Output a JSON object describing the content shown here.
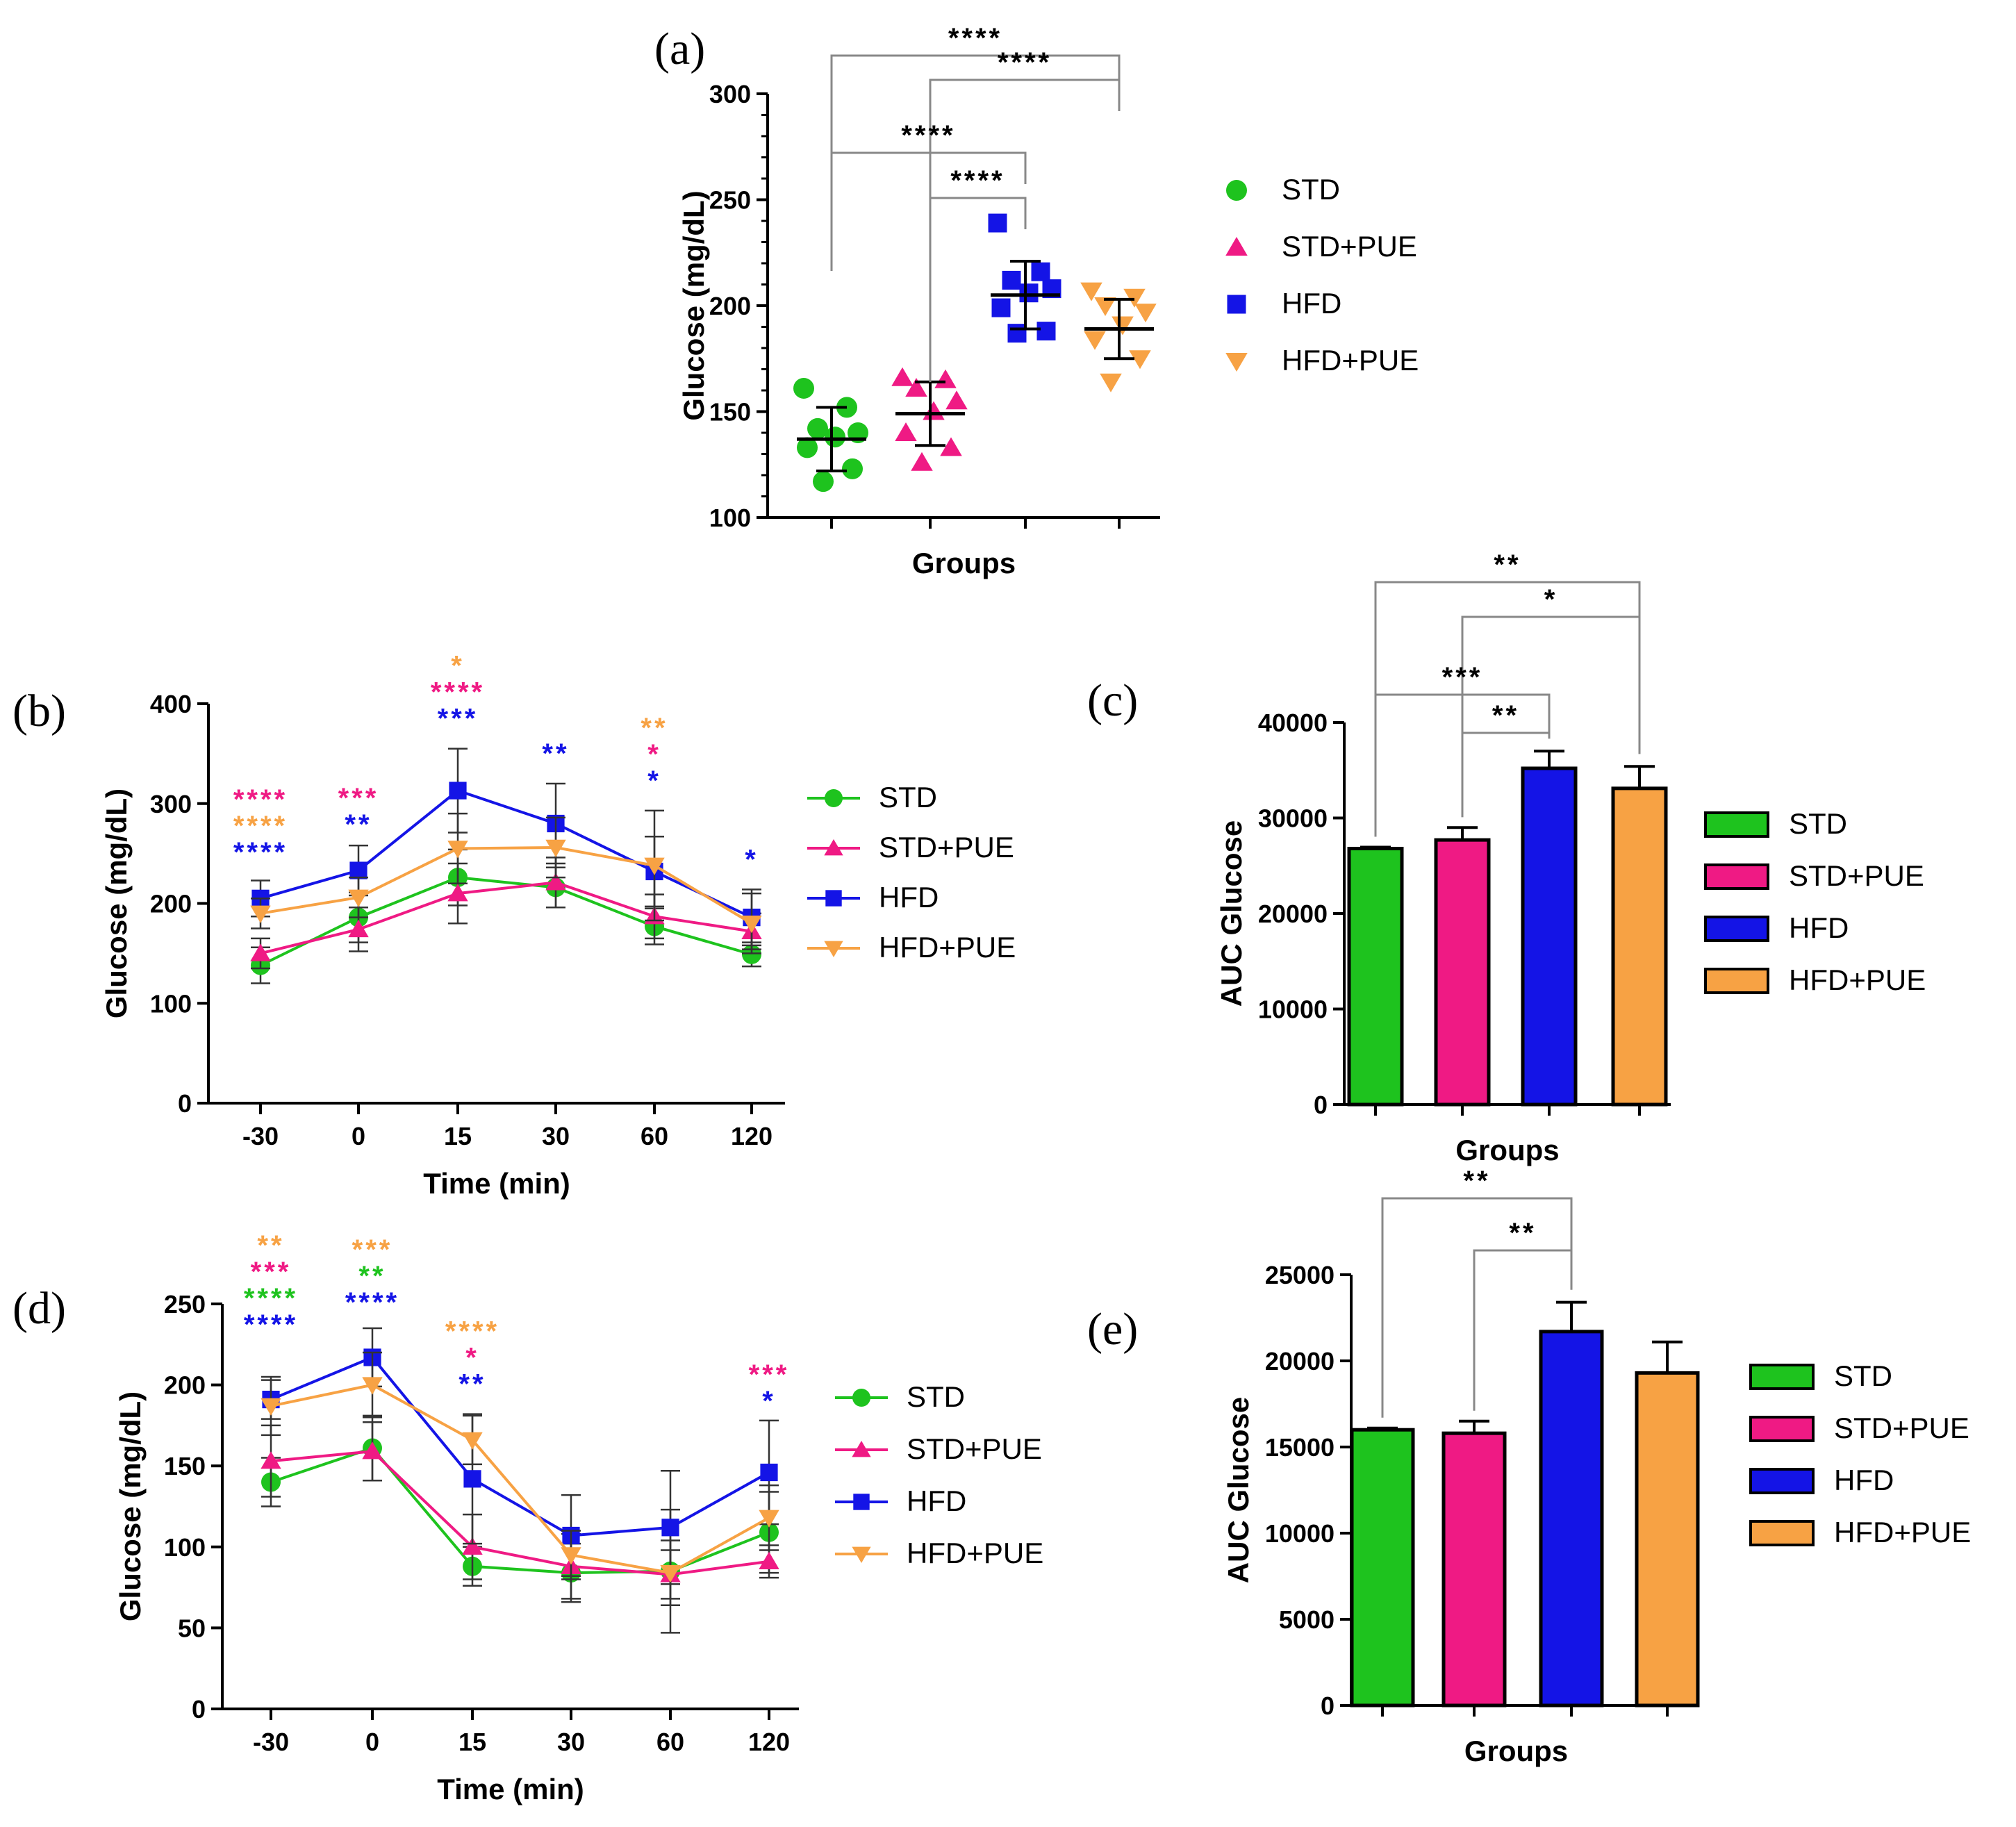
{
  "colors": {
    "STD": "#1ec31e",
    "STD+PUE": "#ef1a84",
    "HFD": "#1414e6",
    "HFD+PUE": "#f7a244"
  },
  "chart_data": [
    {
      "id": "a",
      "panel_label": "(a)",
      "type": "scatter",
      "xlabel": "Groups",
      "ylabel": "Glucose (mg/dL)",
      "ylim": [
        100,
        300
      ],
      "yticks": [
        "100",
        "150",
        "200",
        "250",
        "300"
      ],
      "legend": [
        "STD",
        "STD+PUE",
        "HFD",
        "HFD+PUE"
      ],
      "groups": [
        {
          "name": "STD",
          "values": [
            161,
            152,
            142,
            140,
            138,
            133,
            123,
            117
          ],
          "mean": 137,
          "sd": 15
        },
        {
          "name": "STD+PUE",
          "values": [
            166,
            165,
            161,
            155,
            150,
            140,
            133,
            126
          ],
          "mean": 149,
          "sd": 15
        },
        {
          "name": "HFD",
          "values": [
            239,
            216,
            212,
            208,
            206,
            199,
            188,
            187
          ],
          "mean": 205,
          "sd": 16
        },
        {
          "name": "HFD+PUE",
          "values": [
            207,
            204,
            200,
            197,
            191,
            184,
            175,
            164
          ],
          "mean": 189,
          "sd": 14
        }
      ],
      "significance": [
        {
          "from": 0,
          "to": 3,
          "label": "****"
        },
        {
          "from": 1,
          "to": 3,
          "label": "****"
        },
        {
          "from": 0,
          "to": 2,
          "label": "****"
        },
        {
          "from": 1,
          "to": 2,
          "label": "****"
        }
      ]
    },
    {
      "id": "b",
      "panel_label": "(b)",
      "type": "line",
      "xlabel": "Time (min)",
      "ylabel": "Glucose (mg/dL)",
      "ylim": [
        0,
        400
      ],
      "yticks": [
        "0",
        "100",
        "200",
        "300",
        "400"
      ],
      "x": [
        "-30",
        "0",
        "15",
        "30",
        "60",
        "120"
      ],
      "series": [
        {
          "name": "STD",
          "values": [
            138,
            186,
            226,
            216,
            177,
            149
          ],
          "err": [
            18,
            25,
            28,
            20,
            18,
            12
          ]
        },
        {
          "name": "STD+PUE",
          "values": [
            150,
            174,
            210,
            221,
            187,
            172
          ],
          "err": [
            15,
            22,
            30,
            25,
            22,
            18
          ]
        },
        {
          "name": "HFD",
          "values": [
            205,
            233,
            313,
            280,
            232,
            186
          ],
          "err": [
            18,
            25,
            42,
            40,
            35,
            28
          ]
        },
        {
          "name": "HFD+PUE",
          "values": [
            190,
            206,
            255,
            256,
            238,
            180
          ],
          "err": [
            15,
            20,
            35,
            30,
            55,
            30
          ]
        }
      ],
      "stars": [
        {
          "x": 0,
          "rows": [
            {
              "label": "****",
              "color": "STD+PUE"
            },
            {
              "label": "****",
              "color": "HFD+PUE"
            },
            {
              "label": "****",
              "color": "HFD"
            }
          ]
        },
        {
          "x": 1,
          "rows": [
            {
              "label": "***",
              "color": "STD+PUE"
            },
            {
              "label": "**",
              "color": "HFD"
            }
          ]
        },
        {
          "x": 2,
          "rows": [
            {
              "label": "*",
              "color": "HFD+PUE"
            },
            {
              "label": "****",
              "color": "STD+PUE"
            },
            {
              "label": "***",
              "color": "HFD"
            }
          ]
        },
        {
          "x": 3,
          "rows": [
            {
              "label": "**",
              "color": "HFD"
            }
          ]
        },
        {
          "x": 4,
          "rows": [
            {
              "label": "**",
              "color": "HFD+PUE"
            },
            {
              "label": "*",
              "color": "STD+PUE"
            },
            {
              "label": "*",
              "color": "HFD"
            }
          ]
        },
        {
          "x": 5,
          "rows": [
            {
              "label": "*",
              "color": "HFD"
            }
          ]
        }
      ],
      "legend": [
        "STD",
        "STD+PUE",
        "HFD",
        "HFD+PUE"
      ]
    },
    {
      "id": "c",
      "panel_label": "(c)",
      "type": "bar",
      "xlabel": "Groups",
      "ylabel": "AUC Glucose",
      "ylim": [
        0,
        40000
      ],
      "yticks": [
        "0",
        "10000",
        "20000",
        "30000",
        "40000"
      ],
      "categories": [
        "STD",
        "STD+PUE",
        "HFD",
        "HFD+PUE"
      ],
      "values": [
        26800,
        27700,
        35200,
        33100
      ],
      "err": [
        150,
        1300,
        1800,
        2300
      ],
      "significance": [
        {
          "from": 0,
          "to": 3,
          "label": "**"
        },
        {
          "from": 1,
          "to": 3,
          "label": "*"
        },
        {
          "from": 0,
          "to": 2,
          "label": "***"
        },
        {
          "from": 1,
          "to": 2,
          "label": "**"
        }
      ],
      "legend": [
        "STD",
        "STD+PUE",
        "HFD",
        "HFD+PUE"
      ]
    },
    {
      "id": "d",
      "panel_label": "(d)",
      "type": "line",
      "xlabel": "Time (min)",
      "ylabel": "Glucose (mg/dL)",
      "ylim": [
        0,
        250
      ],
      "yticks": [
        "0",
        "50",
        "100",
        "150",
        "200",
        "250"
      ],
      "x": [
        "-30",
        "0",
        "15",
        "30",
        "60",
        "120"
      ],
      "series": [
        {
          "name": "STD",
          "values": [
            140,
            161,
            88,
            84,
            85,
            109
          ],
          "err": [
            15,
            20,
            12,
            18,
            38,
            25
          ]
        },
        {
          "name": "STD+PUE",
          "values": [
            153,
            159,
            100,
            88,
            83,
            91
          ],
          "err": [
            22,
            18,
            20,
            20,
            15,
            10
          ]
        },
        {
          "name": "HFD",
          "values": [
            191,
            217,
            142,
            107,
            112,
            146
          ],
          "err": [
            12,
            18,
            40,
            25,
            35,
            32
          ]
        },
        {
          "name": "HFD+PUE",
          "values": [
            187,
            200,
            166,
            95,
            84,
            118
          ],
          "err": [
            18,
            20,
            15,
            15,
            20,
            20
          ]
        }
      ],
      "stars": [
        {
          "x": 0,
          "rows": [
            {
              "label": "**",
              "color": "HFD+PUE"
            },
            {
              "label": "***",
              "color": "STD+PUE"
            },
            {
              "label": "****",
              "color": "STD"
            },
            {
              "label": "****",
              "color": "HFD"
            }
          ]
        },
        {
          "x": 1,
          "rows": [
            {
              "label": "***",
              "color": "HFD+PUE"
            },
            {
              "label": "**",
              "color": "STD"
            },
            {
              "label": "****",
              "color": "HFD"
            }
          ]
        },
        {
          "x": 2,
          "rows": [
            {
              "label": "****",
              "color": "HFD+PUE"
            },
            {
              "label": "*",
              "color": "STD+PUE"
            },
            {
              "label": "**",
              "color": "HFD"
            }
          ]
        },
        {
          "x": 5,
          "rows": [
            {
              "label": "***",
              "color": "STD+PUE"
            },
            {
              "label": "*",
              "color": "HFD"
            }
          ]
        }
      ],
      "legend": [
        "STD",
        "STD+PUE",
        "HFD",
        "HFD+PUE"
      ]
    },
    {
      "id": "e",
      "panel_label": "(e)",
      "type": "bar",
      "xlabel": "Groups",
      "ylabel": "AUC Glucose",
      "ylim": [
        0,
        25000
      ],
      "yticks": [
        "0",
        "5000",
        "10000",
        "15000",
        "20000",
        "25000"
      ],
      "categories": [
        "STD",
        "STD+PUE",
        "HFD",
        "HFD+PUE"
      ],
      "values": [
        16000,
        15800,
        21700,
        19300
      ],
      "err": [
        100,
        700,
        1700,
        1800
      ],
      "significance": [
        {
          "from": 0,
          "to": 2,
          "label": "**"
        },
        {
          "from": 1,
          "to": 2,
          "label": "**"
        }
      ],
      "legend": [
        "STD",
        "STD+PUE",
        "HFD",
        "HFD+PUE"
      ]
    }
  ]
}
